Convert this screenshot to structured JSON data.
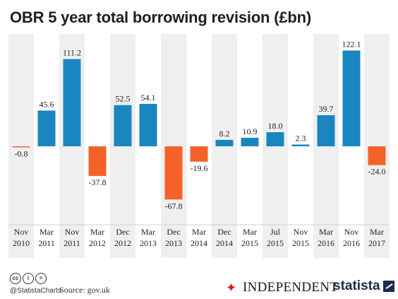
{
  "title": "OBR 5 year total borrowing revision (£bn)",
  "footer": {
    "handle": "@StatistaCharts",
    "source": "Source: gov.uk",
    "independent": "INDEPENDENT",
    "statista": "statista"
  },
  "colors": {
    "positive": "#1a86bf",
    "negative": "#f4622a",
    "band": "#efefef",
    "text": "#222222"
  },
  "chart_data": {
    "type": "bar",
    "title": "OBR 5 year total borrowing revision (£bn)",
    "categories": [
      [
        "Nov",
        "2010"
      ],
      [
        "Mar",
        "2011"
      ],
      [
        "Nov",
        "2011"
      ],
      [
        "Mar",
        "2012"
      ],
      [
        "Dec",
        "2012"
      ],
      [
        "Mar",
        "2013"
      ],
      [
        "Dec",
        "2013"
      ],
      [
        "Mar",
        "2014"
      ],
      [
        "Dec",
        "2014"
      ],
      [
        "Mar",
        "2015"
      ],
      [
        "Jul",
        "2015"
      ],
      [
        "Nov",
        "2015"
      ],
      [
        "Mar",
        "2016"
      ],
      [
        "Nov",
        "2016"
      ],
      [
        "Mar",
        "2017"
      ]
    ],
    "values": [
      -0.8,
      45.6,
      111.2,
      -37.8,
      52.5,
      54.1,
      -67.8,
      -19.6,
      8.2,
      10.9,
      18.0,
      2.3,
      39.7,
      122.1,
      -24.0
    ],
    "labels": [
      "-0.8",
      "45.6",
      "111.2",
      "-37.8",
      "52.5",
      "54.1",
      "-67.8",
      "-19.6",
      "8.2",
      "10.9",
      "18.0",
      "2.3",
      "39.7",
      "122.1",
      "-24.0"
    ],
    "ylim": [
      -100,
      135
    ],
    "xlabel": "",
    "ylabel": "",
    "alternating_bands": true
  }
}
